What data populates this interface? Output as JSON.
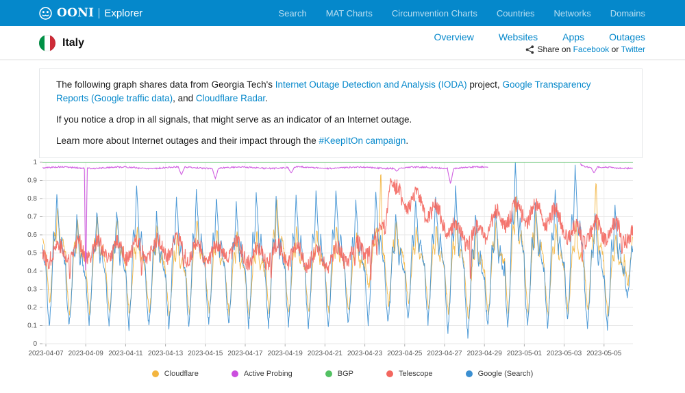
{
  "navbar": {
    "brand_primary": "OONI",
    "brand_secondary": "Explorer",
    "items": [
      "Search",
      "MAT Charts",
      "Circumvention Charts",
      "Countries",
      "Networks",
      "Domains"
    ]
  },
  "header": {
    "country": "Italy",
    "tabs": [
      "Overview",
      "Websites",
      "Apps",
      "Outages"
    ],
    "share": {
      "prefix": "Share on",
      "facebook": "Facebook",
      "middle": "or",
      "twitter": "Twitter"
    }
  },
  "info": {
    "paragraphs": [
      [
        {
          "t": "The following graph shares data from Georgia Tech's "
        },
        {
          "t": "Internet Outage Detection and Analysis (IODA)",
          "link": true,
          "name": "ioda-link"
        },
        {
          "t": " project, "
        },
        {
          "t": "Google Transparency Reports (Google traffic data)",
          "link": true,
          "name": "google-transparency-link"
        },
        {
          "t": ", and "
        },
        {
          "t": "Cloudflare Radar",
          "link": true,
          "name": "cloudflare-radar-link"
        },
        {
          "t": "."
        }
      ],
      [
        {
          "t": "If you notice a drop in all signals, that might serve as an indicator of an Internet outage."
        }
      ],
      [
        {
          "t": "Learn more about Internet outages and their impact through the "
        },
        {
          "t": "#KeepItOn campaign",
          "link": true,
          "name": "keepiton-link"
        },
        {
          "t": "."
        }
      ]
    ]
  },
  "colors": {
    "navbar_bg": "#0588CB",
    "link_blue": "#0588CB",
    "grid": "#e8e8e8",
    "axis_text": "#555555"
  },
  "chart_data": {
    "type": "line",
    "x_axis": "date (2023-04-07 to 2023-05-06, sub-daily resolution)",
    "ylim": [
      0,
      1
    ],
    "y_tick_labels": [
      "1",
      "0.9",
      "0.8",
      "0.7",
      "0.6",
      "0.5",
      "0.4",
      "0.3",
      "0.2",
      "0.1",
      "0"
    ],
    "x_tick_labels": [
      "2023-04-07",
      "2023-04-09",
      "2023-04-11",
      "2023-04-13",
      "2023-04-15",
      "2023-04-17",
      "2023-04-19",
      "2023-04-21",
      "2023-04-23",
      "2023-04-25",
      "2023-04-27",
      "2023-04-29",
      "2023-05-01",
      "2023-05-03",
      "2023-05-05"
    ],
    "days_per_tick": 2,
    "day_range": [
      -0.17,
      29.45
    ],
    "grid": true,
    "legend_position": "bottom-center",
    "legend": [
      {
        "label": "Cloudflare",
        "color": "#F3B53F"
      },
      {
        "label": "Active Probing",
        "color": "#CB4EDE"
      },
      {
        "label": "BGP",
        "color": "#53C163"
      },
      {
        "label": "Telescope",
        "color": "#F3675F"
      },
      {
        "label": "Google (Search)",
        "color": "#3B8FD1"
      }
    ],
    "series": {
      "bgp": {
        "type": "constant",
        "value": 1.0
      },
      "active_probing": {
        "baseline": 0.97,
        "dips": [
          [
            2.0,
            0.31
          ],
          [
            6.8,
            0.93
          ],
          [
            8.5,
            0.91
          ],
          [
            12.3,
            0.94
          ],
          [
            17.6,
            0.95
          ],
          [
            20.3,
            0.88
          ],
          [
            27.5,
            0.94
          ]
        ],
        "gap": [
          22.2,
          26.8
        ],
        "resume_value": 0.995
      },
      "google": {
        "description": "daily oscillation, peak midday / trough at night",
        "daily_peak": [
          0.84,
          0.7,
          0.73,
          0.73,
          0.87,
          0.72,
          0.81,
          0.84,
          0.81,
          0.77,
          0.83,
          0.81,
          0.82,
          0.83,
          0.86,
          0.78,
          0.83,
          0.72,
          0.8,
          0.82,
          0.86,
          0.72,
          0.75,
          0.99,
          0.78,
          0.85,
          0.97,
          0.72,
          0.77,
          0.66
        ],
        "daily_trough": [
          0.08,
          0.09,
          0.1,
          0.1,
          0.07,
          0.08,
          0.07,
          0.08,
          0.09,
          0.09,
          0.08,
          0.08,
          0.08,
          0.08,
          0.07,
          0.09,
          0.1,
          0.1,
          0.12,
          0.1,
          0.05,
          0.03,
          0.08,
          0.07,
          0.09,
          0.08,
          0.1,
          0.08,
          0.07,
          0.25
        ]
      },
      "cloudflare": {
        "daily_peak": [
          0.76,
          0.7,
          0.71,
          0.71,
          0.66,
          0.66,
          0.62,
          0.7,
          0.65,
          0.62,
          0.62,
          0.8,
          0.66,
          0.65,
          0.66,
          0.62,
          0.65,
          0.68,
          0.65,
          0.66,
          0.7,
          0.65,
          0.7,
          0.85,
          0.75,
          0.68,
          0.68,
          0.75,
          0.62,
          0.7
        ],
        "daily_trough": [
          0.21,
          0.14,
          0.15,
          0.15,
          0.14,
          0.15,
          0.14,
          0.15,
          0.16,
          0.15,
          0.14,
          0.15,
          0.15,
          0.15,
          0.15,
          0.16,
          0.3,
          0.2,
          0.2,
          0.18,
          0.15,
          0.12,
          0.14,
          0.13,
          0.14,
          0.14,
          0.15,
          0.15,
          0.14,
          0.3
        ],
        "spikes": [
          [
            16.8,
            0.98
          ],
          [
            27.6,
            0.9
          ]
        ]
      },
      "telescope": {
        "description": "noisy band around midline; elevated 2023-04-24 to 2023-05-02",
        "daily_level": [
          0.5,
          0.52,
          0.52,
          0.51,
          0.52,
          0.52,
          0.53,
          0.5,
          0.5,
          0.52,
          0.48,
          0.5,
          0.49,
          0.47,
          0.48,
          0.5,
          0.55,
          0.82,
          0.78,
          0.72,
          0.62,
          0.58,
          0.68,
          0.72,
          0.72,
          0.7,
          0.6,
          0.62,
          0.62,
          0.6
        ],
        "up_spikes": [
          [
            17.3,
            0.93
          ]
        ],
        "down_spikes": [
          [
            1.2,
            0.33
          ],
          [
            4.8,
            0.34
          ],
          [
            6.9,
            0.41
          ],
          [
            11.3,
            0.33
          ],
          [
            15.5,
            0.4
          ],
          [
            16.3,
            0.32
          ],
          [
            16.6,
            0.45
          ],
          [
            21.3,
            0.3
          ],
          [
            26.9,
            0.42
          ],
          [
            28.9,
            0.48
          ]
        ]
      }
    }
  }
}
